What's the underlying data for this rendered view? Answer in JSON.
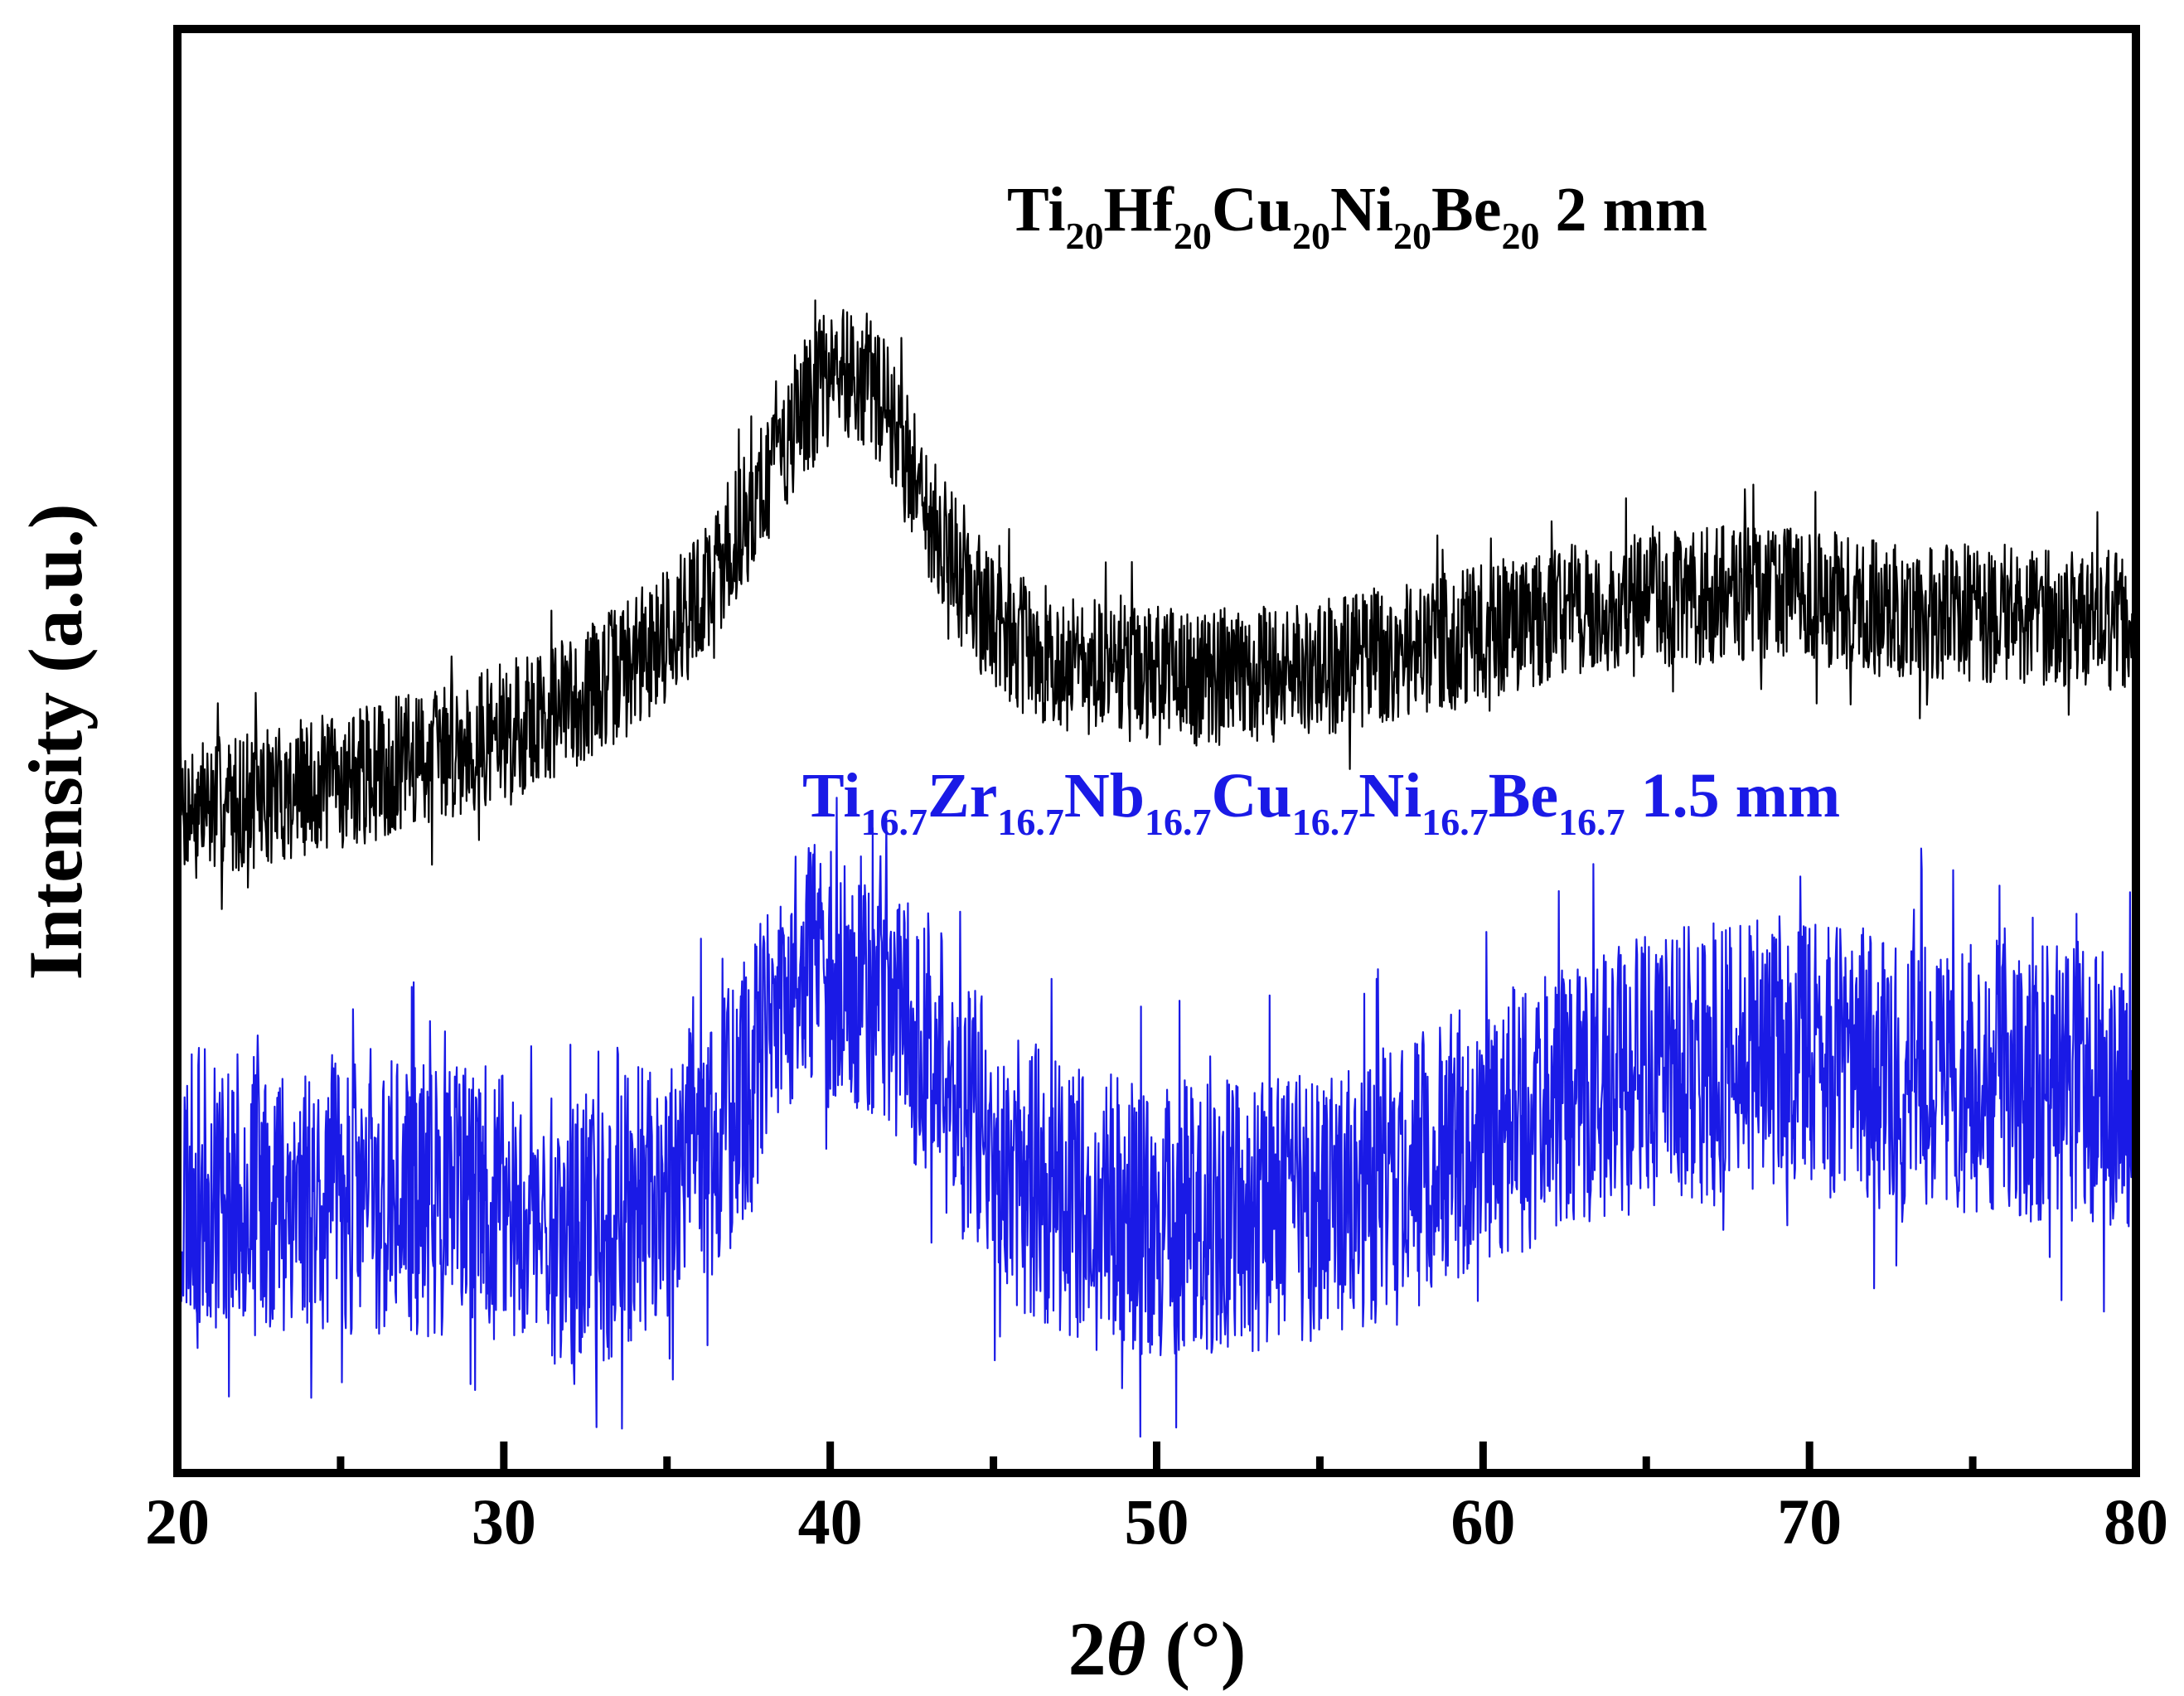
{
  "chart_data": {
    "type": "line",
    "xlabel": "2θ (°)",
    "xlabel_parts": {
      "prefix": "2",
      "theta": "θ",
      "suffix": " (°)"
    },
    "ylabel": "Intensity (a.u.)",
    "xlim": [
      20,
      80
    ],
    "y_ticks_shown": false,
    "grid": false,
    "x_major_ticks": [
      20,
      30,
      40,
      50,
      60,
      70,
      80
    ],
    "x_tick_labels": [
      "20",
      "30",
      "40",
      "50",
      "60",
      "70",
      "80"
    ],
    "x_minor_ticks": [
      25,
      35,
      45,
      55,
      65,
      75
    ],
    "series": [
      {
        "name": "Ti20Hf20Cu20Ni20Be20 2 mm",
        "label_parts": [
          {
            "t": "Ti"
          },
          {
            "t": "20",
            "sub": true
          },
          {
            "t": "Hf"
          },
          {
            "t": "20",
            "sub": true
          },
          {
            "t": "Cu"
          },
          {
            "t": "20",
            "sub": true
          },
          {
            "t": "Ni"
          },
          {
            "t": "20",
            "sub": true
          },
          {
            "t": "Be"
          },
          {
            "t": "20",
            "sub": true
          },
          {
            "t": "  2 mm"
          }
        ],
        "color": "#000000",
        "noise": 10,
        "seed": 7,
        "profile": [
          [
            20,
            17
          ],
          [
            22,
            18
          ],
          [
            24,
            20
          ],
          [
            26,
            22
          ],
          [
            28,
            25
          ],
          [
            30,
            28
          ],
          [
            32,
            32
          ],
          [
            34,
            38
          ],
          [
            36,
            47
          ],
          [
            37,
            55
          ],
          [
            38,
            64
          ],
          [
            39,
            73
          ],
          [
            40,
            79
          ],
          [
            40.5,
            80
          ],
          [
            41,
            79
          ],
          [
            42,
            72
          ],
          [
            43,
            60
          ],
          [
            44,
            50
          ],
          [
            45,
            44
          ],
          [
            46,
            40
          ],
          [
            48,
            37
          ],
          [
            50,
            36
          ],
          [
            52,
            36
          ],
          [
            55,
            37
          ],
          [
            58,
            40
          ],
          [
            60,
            42
          ],
          [
            62,
            45
          ],
          [
            64,
            46
          ],
          [
            66,
            47
          ],
          [
            68,
            48
          ],
          [
            70,
            47
          ],
          [
            72,
            46
          ],
          [
            74,
            45
          ],
          [
            76,
            45
          ],
          [
            78,
            44
          ],
          [
            80,
            44
          ]
        ]
      },
      {
        "name": "Ti16.7Zr16.7Nb16.7Cu16.7Ni16.7Be16.7 1.5 mm",
        "label_parts": [
          {
            "t": "Ti"
          },
          {
            "t": "16.7",
            "sub": true
          },
          {
            "t": "Zr"
          },
          {
            "t": "16.7",
            "sub": true
          },
          {
            "t": "Nb"
          },
          {
            "t": "16.7",
            "sub": true
          },
          {
            "t": "Cu"
          },
          {
            "t": "16.7",
            "sub": true
          },
          {
            "t": "Ni"
          },
          {
            "t": "16.7",
            "sub": true
          },
          {
            "t": "Be"
          },
          {
            "t": "16.7",
            "sub": true
          },
          {
            "t": "  1.5 mm"
          }
        ],
        "color": "#1a1ae6",
        "noise": 20,
        "seed": 23,
        "profile": [
          [
            20,
            -37
          ],
          [
            22,
            -38
          ],
          [
            24,
            -38
          ],
          [
            26,
            -39
          ],
          [
            28,
            -39
          ],
          [
            30,
            -40
          ],
          [
            31,
            -42
          ],
          [
            32,
            -44
          ],
          [
            33,
            -43
          ],
          [
            34,
            -40
          ],
          [
            35,
            -37
          ],
          [
            36,
            -33
          ],
          [
            37,
            -27
          ],
          [
            38,
            -18
          ],
          [
            39,
            -9
          ],
          [
            40,
            -6
          ],
          [
            41,
            -7
          ],
          [
            42,
            -11
          ],
          [
            43,
            -18
          ],
          [
            44,
            -25
          ],
          [
            45,
            -31
          ],
          [
            46,
            -36
          ],
          [
            48,
            -40
          ],
          [
            50,
            -42
          ],
          [
            52,
            -42
          ],
          [
            54,
            -41
          ],
          [
            56,
            -38
          ],
          [
            58,
            -35
          ],
          [
            60,
            -30
          ],
          [
            62,
            -25
          ],
          [
            64,
            -22
          ],
          [
            66,
            -20
          ],
          [
            68,
            -19
          ],
          [
            70,
            -19
          ],
          [
            72,
            -20
          ],
          [
            74,
            -21
          ],
          [
            76,
            -22
          ],
          [
            78,
            -23
          ],
          [
            80,
            -24
          ]
        ]
      }
    ]
  }
}
